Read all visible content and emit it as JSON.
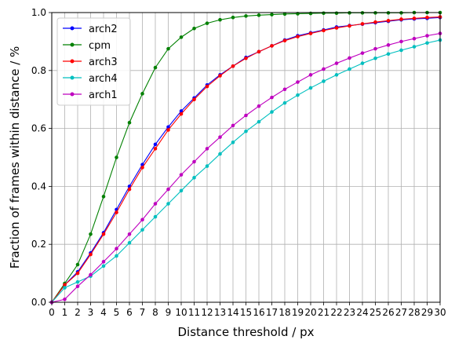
{
  "chart_data": {
    "type": "line",
    "xlabel": "Distance threshold / px",
    "ylabel": "Fraction of frames within distance / %",
    "xlim": [
      0,
      30
    ],
    "ylim": [
      0,
      1.0
    ],
    "grid": true,
    "legend_position": "top-left",
    "x": [
      0,
      1,
      2,
      3,
      4,
      5,
      6,
      7,
      8,
      9,
      10,
      11,
      12,
      13,
      14,
      15,
      16,
      17,
      18,
      19,
      20,
      21,
      22,
      23,
      24,
      25,
      26,
      27,
      28,
      29,
      30
    ],
    "x_ticks": [
      "0",
      "1",
      "2",
      "3",
      "4",
      "5",
      "6",
      "7",
      "8",
      "9",
      "10",
      "11",
      "12",
      "13",
      "14",
      "15",
      "16",
      "17",
      "18",
      "19",
      "20",
      "21",
      "22",
      "23",
      "24",
      "25",
      "26",
      "27",
      "28",
      "29",
      "30"
    ],
    "y_ticks": [
      "0.0",
      "0.2",
      "0.4",
      "0.6",
      "0.8",
      "1.0"
    ],
    "y_tick_values": [
      0,
      0.2,
      0.4,
      0.6,
      0.8,
      1.0
    ],
    "series": [
      {
        "name": "arch2",
        "color": "#0000ff",
        "values": [
          0,
          0.06,
          0.105,
          0.17,
          0.24,
          0.32,
          0.4,
          0.475,
          0.545,
          0.605,
          0.66,
          0.705,
          0.75,
          0.785,
          0.815,
          0.845,
          0.865,
          0.885,
          0.905,
          0.92,
          0.93,
          0.94,
          0.95,
          0.955,
          0.96,
          0.965,
          0.97,
          0.975,
          0.978,
          0.98,
          0.983
        ]
      },
      {
        "name": "cpm",
        "color": "#008000",
        "values": [
          0,
          0.065,
          0.13,
          0.235,
          0.365,
          0.5,
          0.62,
          0.72,
          0.81,
          0.875,
          0.915,
          0.945,
          0.963,
          0.975,
          0.983,
          0.988,
          0.991,
          0.993,
          0.995,
          0.996,
          0.997,
          0.998,
          0.998,
          0.999,
          0.999,
          0.999,
          0.999,
          0.999,
          1.0,
          1.0,
          1.0
        ]
      },
      {
        "name": "arch3",
        "color": "#ff0000",
        "values": [
          0,
          0.06,
          0.1,
          0.165,
          0.235,
          0.31,
          0.39,
          0.465,
          0.53,
          0.595,
          0.65,
          0.7,
          0.745,
          0.782,
          0.815,
          0.842,
          0.865,
          0.885,
          0.903,
          0.917,
          0.928,
          0.938,
          0.947,
          0.954,
          0.961,
          0.967,
          0.972,
          0.977,
          0.98,
          0.983,
          0.985
        ]
      },
      {
        "name": "arch4",
        "color": "#00bfbf",
        "values": [
          0,
          0.05,
          0.07,
          0.09,
          0.125,
          0.16,
          0.205,
          0.25,
          0.295,
          0.34,
          0.385,
          0.43,
          0.47,
          0.512,
          0.552,
          0.59,
          0.623,
          0.657,
          0.688,
          0.715,
          0.74,
          0.763,
          0.785,
          0.805,
          0.825,
          0.842,
          0.857,
          0.87,
          0.882,
          0.895,
          0.905
        ]
      },
      {
        "name": "arch1",
        "color": "#bf00bf",
        "values": [
          0,
          0.01,
          0.055,
          0.095,
          0.14,
          0.185,
          0.235,
          0.285,
          0.34,
          0.39,
          0.44,
          0.485,
          0.53,
          0.57,
          0.61,
          0.645,
          0.677,
          0.707,
          0.735,
          0.76,
          0.785,
          0.805,
          0.825,
          0.843,
          0.86,
          0.875,
          0.888,
          0.9,
          0.91,
          0.92,
          0.928
        ]
      }
    ]
  }
}
